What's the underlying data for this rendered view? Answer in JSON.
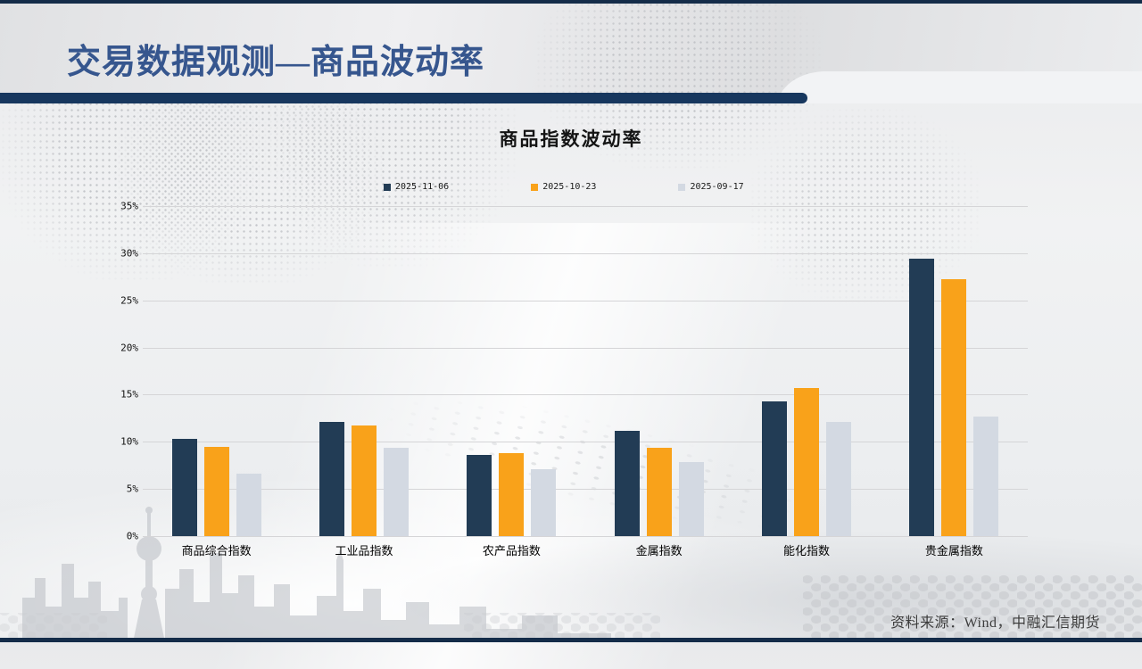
{
  "slide": {
    "page_title": "交易数据观测—商品波动率",
    "source_note": "资料来源：Wind，中融汇信期货"
  },
  "chart_data": {
    "type": "bar",
    "title": "商品指数波动率",
    "categories": [
      "商品综合指数",
      "工业品指数",
      "农产品指数",
      "金属指数",
      "能化指数",
      "贵金属指数"
    ],
    "series": [
      {
        "name": "2025-11-06",
        "color": "#223c55",
        "values": [
          10.3,
          12.1,
          8.6,
          11.2,
          14.3,
          29.4
        ]
      },
      {
        "name": "2025-10-23",
        "color": "#f9a21a",
        "values": [
          9.5,
          11.7,
          8.8,
          9.4,
          15.7,
          27.2
        ]
      },
      {
        "name": "2025-09-17",
        "color": "#d3d9e2",
        "values": [
          6.6,
          9.4,
          7.1,
          7.9,
          12.1,
          12.7
        ]
      }
    ],
    "ylim": [
      0,
      35
    ],
    "y_tick_step": 5,
    "y_tick_suffix": "%",
    "grid": true,
    "legend_position": "top"
  },
  "theme": {
    "title_blue": "#36568e",
    "accent_navy": "#17375e",
    "strip_navy": "#142c49",
    "gridline": "#d5d5d7",
    "bar_navy": "#223c55",
    "bar_orange": "#f9a21a",
    "bar_gray": "#d3d9e2"
  }
}
